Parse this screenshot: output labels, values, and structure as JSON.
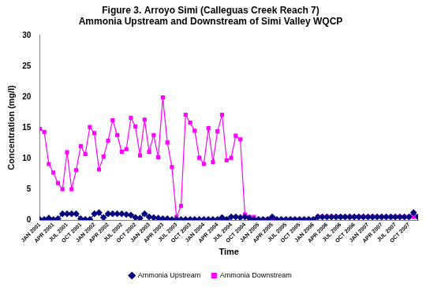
{
  "chart_data": {
    "type": "line",
    "title": [
      "Figure 3. Arroyo Simi (Calleguas Creek Reach 7)",
      "Ammonia Upstream and Downstream of Simi Valley WQCP"
    ],
    "x_label": "Time",
    "y_label": "Concentration (mg/l)",
    "categories": [
      "JAN 2001",
      null,
      null,
      "APR 2001",
      null,
      null,
      "JUL 2001",
      null,
      null,
      "OCT 2001",
      null,
      null,
      "JAN 2002",
      null,
      null,
      "APR 2002",
      null,
      null,
      "JUL 2002",
      null,
      null,
      "OCT 2002",
      null,
      null,
      "JAN 2003",
      null,
      null,
      "APR 2003",
      null,
      null,
      "JUL 2003",
      null,
      null,
      "OCT 2003",
      null,
      null,
      "JAN 2004",
      null,
      null,
      "APR 2004",
      null,
      null,
      "JUL 2004",
      null,
      null,
      "OCT 2004",
      null,
      null,
      "JAN 2005",
      null,
      null,
      "APR 2005",
      null,
      null,
      "JUL 2005",
      null,
      null,
      "OCT 2005",
      null,
      null,
      "JAN 2006",
      null,
      null,
      "APR 2006",
      null,
      null,
      "JUL 2006",
      null,
      null,
      "OCT 2006",
      null,
      null,
      "JAN 2007",
      null,
      null,
      "APR 2007",
      null,
      null,
      "JUL 2007",
      null,
      null,
      "OCT 2007",
      null,
      null
    ],
    "series": [
      {
        "name": "Ammonia Upstream",
        "color": "#000080",
        "marker": "diamond",
        "values": [
          0.1,
          0.1,
          0.3,
          0.1,
          0.2,
          1.0,
          1.0,
          1.0,
          1.0,
          0.2,
          0.1,
          0.1,
          1.0,
          1.2,
          0.4,
          1.0,
          1.0,
          1.0,
          1.0,
          0.9,
          0.8,
          0.4,
          0.3,
          1.0,
          0.5,
          0.4,
          0.3,
          0.2,
          0.2,
          0.1,
          0.1,
          0.1,
          0.1,
          0.1,
          0.1,
          0.1,
          0.1,
          0.1,
          0.1,
          0.1,
          0.4,
          0.1,
          0.5,
          0.5,
          0.4,
          0.5,
          0.3,
          0.1,
          0.1,
          0.1,
          0.1,
          0.5,
          0.1,
          0.1,
          0.1,
          0.1,
          0.1,
          0.1,
          0.1,
          0.1,
          0.1,
          0.5,
          0.5,
          0.5,
          0.5,
          0.5,
          0.5,
          0.5,
          0.5,
          0.5,
          0.5,
          0.5,
          0.5,
          0.5,
          0.5,
          0.5,
          0.5,
          0.5,
          0.5,
          0.5,
          0.5,
          0.5,
          1.2,
          0.5
        ]
      },
      {
        "name": "Ammonia Downstream",
        "color": "#FF00FF",
        "marker": "square",
        "values": [
          14.8,
          14.3,
          9.1,
          7.7,
          6.0,
          5.0,
          11.0,
          5.0,
          8.1,
          12.0,
          10.7,
          15.1,
          14.1,
          8.2,
          10.3,
          12.9,
          16.2,
          13.8,
          11.1,
          11.5,
          16.6,
          15.2,
          10.5,
          16.3,
          11.1,
          13.8,
          10.2,
          19.9,
          12.6,
          8.6,
          0.5,
          2.3,
          17.1,
          15.8,
          14.5,
          10.1,
          9.1,
          14.9,
          9.4,
          14.4,
          17.1,
          9.7,
          10.1,
          13.7,
          13.1,
          0.9,
          0.5,
          0.5,
          0.1,
          0.1,
          0.1,
          0.1,
          0.1,
          0.1,
          0.1,
          0.1,
          0.1,
          0.1,
          0.1,
          0.1,
          0.1,
          0.5,
          0.5,
          0.5,
          0.5,
          0.5,
          0.5,
          0.5,
          0.5,
          0.5,
          0.5,
          0.5,
          0.5,
          0.5,
          0.5,
          0.5,
          0.5,
          0.5,
          0.5,
          0.5,
          0.5,
          0.5,
          0.5,
          0.5
        ]
      }
    ],
    "ylim": [
      0,
      30
    ],
    "yticks": [
      0,
      5,
      10,
      15,
      20,
      25,
      30
    ],
    "grid": false,
    "legend": "bottom"
  }
}
